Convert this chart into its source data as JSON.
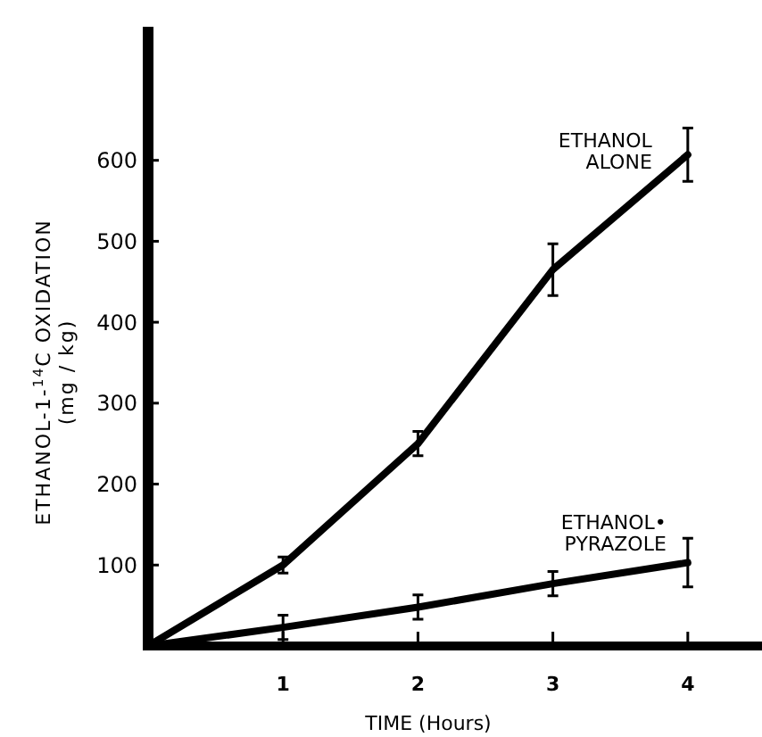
{
  "chart_data": {
    "type": "line",
    "xlabel": "TIME (Hours)",
    "ylabel": "ETHANOL-1-$^{14}$C OXIDATION (mg / kg)",
    "x": [
      0,
      1,
      2,
      3,
      4
    ],
    "xlim": [
      0,
      4.55
    ],
    "xticks": [
      1,
      2,
      3,
      4
    ],
    "ylim": [
      0,
      765
    ],
    "yticks": [
      100,
      200,
      300,
      400,
      500,
      600
    ],
    "grid": false,
    "marker": "none",
    "line_style": "solid",
    "series": [
      {
        "name": "ETHANOL ALONE",
        "color": "#000000",
        "values": [
          0,
          100,
          250,
          465,
          607
        ],
        "errors": [
          null,
          10,
          15,
          32,
          33
        ]
      },
      {
        "name": "ETHANOL• PYRAZOLE",
        "color": "#000000",
        "values": [
          0,
          23,
          48,
          77,
          103
        ],
        "errors": [
          null,
          15,
          15,
          15,
          30
        ]
      }
    ]
  }
}
